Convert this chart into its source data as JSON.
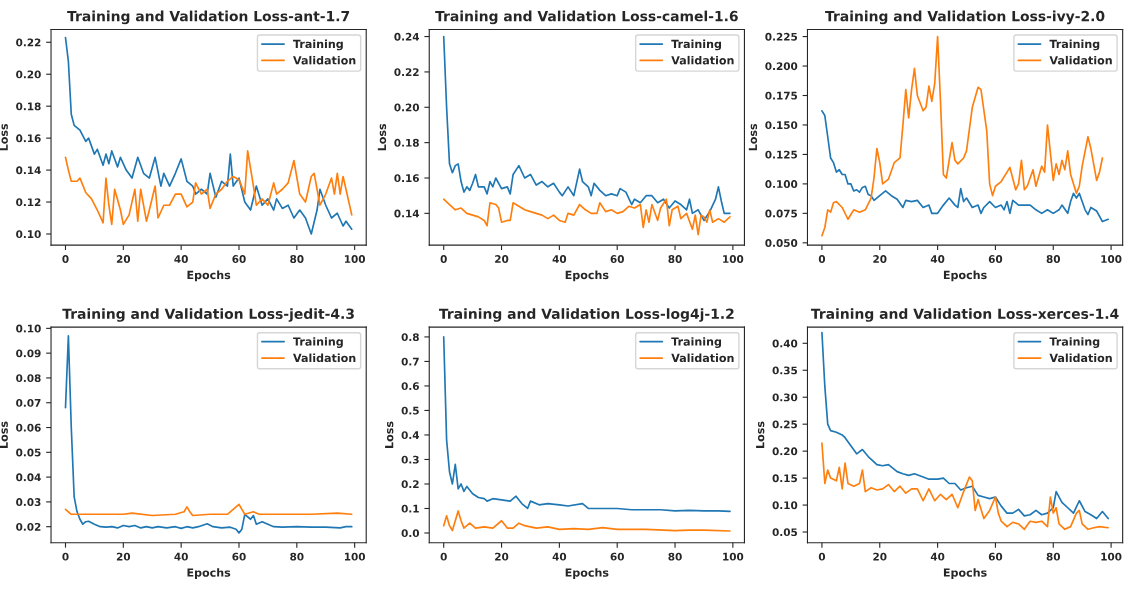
{
  "chart_data": [
    {
      "type": "line",
      "title": "Training and Validation Loss-ant-1.7",
      "xlabel": "Epochs",
      "ylabel": "Loss",
      "xlim": [
        -5,
        104
      ],
      "xticks": [
        0,
        20,
        40,
        60,
        80,
        100
      ],
      "ylim": [
        0.093,
        0.228
      ],
      "yticks": [
        {
          "value": 0.1,
          "label": "0.10"
        },
        0.12,
        0.14,
        0.16,
        0.18,
        {
          "value": 0.2,
          "label": "0.20"
        },
        0.22
      ],
      "legend": "top right",
      "grid": false,
      "series": [
        {
          "name": "Training",
          "color": "#1f77b4",
          "x": [
            0,
            1,
            2,
            3,
            5,
            7,
            8,
            10,
            11,
            13,
            14,
            15,
            16,
            18,
            19,
            21,
            23,
            25,
            27,
            29,
            31,
            33,
            34,
            36,
            38,
            40,
            42,
            44,
            45,
            47,
            49,
            50,
            52,
            54,
            56,
            57,
            58,
            60,
            62,
            64,
            66,
            68,
            70,
            72,
            73,
            75,
            77,
            79,
            81,
            83,
            85,
            87,
            88,
            90,
            92,
            94,
            96,
            97,
            99
          ],
          "values": [
            0.223,
            0.208,
            0.175,
            0.168,
            0.165,
            0.158,
            0.16,
            0.15,
            0.153,
            0.143,
            0.15,
            0.144,
            0.152,
            0.142,
            0.148,
            0.14,
            0.135,
            0.148,
            0.138,
            0.135,
            0.148,
            0.13,
            0.138,
            0.13,
            0.138,
            0.147,
            0.133,
            0.13,
            0.125,
            0.128,
            0.125,
            0.138,
            0.123,
            0.133,
            0.13,
            0.15,
            0.13,
            0.135,
            0.12,
            0.115,
            0.13,
            0.118,
            0.122,
            0.115,
            0.122,
            0.116,
            0.118,
            0.11,
            0.115,
            0.11,
            0.1,
            0.115,
            0.128,
            0.118,
            0.11,
            0.113,
            0.105,
            0.108,
            0.103
          ]
        },
        {
          "name": "Validation",
          "color": "#ff7f0e",
          "x": [
            0,
            1,
            2,
            4,
            5,
            7,
            9,
            11,
            13,
            14,
            15,
            16,
            17,
            19,
            20,
            22,
            24,
            25,
            26,
            28,
            29,
            31,
            32,
            34,
            36,
            38,
            40,
            42,
            44,
            45,
            47,
            49,
            50,
            52,
            54,
            56,
            58,
            60,
            62,
            63,
            65,
            66,
            68,
            70,
            72,
            73,
            75,
            77,
            79,
            81,
            83,
            85,
            86,
            88,
            90,
            92,
            93,
            94,
            95,
            96,
            97,
            99
          ],
          "values": [
            0.148,
            0.14,
            0.133,
            0.133,
            0.135,
            0.126,
            0.122,
            0.115,
            0.107,
            0.135,
            0.118,
            0.106,
            0.128,
            0.115,
            0.106,
            0.112,
            0.128,
            0.108,
            0.128,
            0.108,
            0.115,
            0.13,
            0.11,
            0.118,
            0.118,
            0.125,
            0.125,
            0.117,
            0.12,
            0.132,
            0.125,
            0.128,
            0.116,
            0.125,
            0.128,
            0.133,
            0.136,
            0.134,
            0.125,
            0.152,
            0.13,
            0.118,
            0.122,
            0.118,
            0.132,
            0.125,
            0.128,
            0.132,
            0.146,
            0.125,
            0.12,
            0.136,
            0.138,
            0.118,
            0.125,
            0.135,
            0.125,
            0.138,
            0.125,
            0.136,
            0.128,
            0.112
          ]
        }
      ]
    },
    {
      "type": "line",
      "title": "Training and Validation Loss-camel-1.6",
      "xlabel": "Epochs",
      "ylabel": "Loss",
      "xlim": [
        -5,
        104
      ],
      "xticks": [
        0,
        20,
        40,
        60,
        80,
        100
      ],
      "ylim": [
        0.122,
        0.244
      ],
      "yticks": [
        0.14,
        0.16,
        0.18,
        {
          "value": 0.2,
          "label": "0.20"
        },
        0.22,
        0.24
      ],
      "legend": "top right",
      "grid": false,
      "series": [
        {
          "name": "Training",
          "color": "#1f77b4",
          "x": [
            0,
            1,
            2,
            3,
            4,
            5,
            6,
            7,
            8,
            9,
            10,
            11,
            12,
            14,
            15,
            16,
            17,
            18,
            20,
            22,
            23,
            24,
            26,
            28,
            30,
            32,
            34,
            36,
            38,
            40,
            41,
            43,
            45,
            47,
            48,
            50,
            51,
            52,
            54,
            56,
            58,
            60,
            61,
            63,
            65,
            66,
            68,
            70,
            72,
            74,
            76,
            78,
            80,
            82,
            84,
            85,
            86,
            88,
            90,
            92,
            94,
            95,
            96,
            97,
            99
          ],
          "values": [
            0.24,
            0.2,
            0.168,
            0.163,
            0.167,
            0.168,
            0.158,
            0.152,
            0.155,
            0.153,
            0.157,
            0.162,
            0.155,
            0.155,
            0.151,
            0.158,
            0.155,
            0.16,
            0.154,
            0.155,
            0.151,
            0.162,
            0.167,
            0.16,
            0.162,
            0.156,
            0.158,
            0.155,
            0.157,
            0.152,
            0.15,
            0.155,
            0.15,
            0.165,
            0.158,
            0.155,
            0.15,
            0.157,
            0.153,
            0.15,
            0.151,
            0.15,
            0.154,
            0.152,
            0.145,
            0.148,
            0.146,
            0.15,
            0.15,
            0.146,
            0.148,
            0.143,
            0.147,
            0.145,
            0.142,
            0.148,
            0.14,
            0.142,
            0.136,
            0.141,
            0.148,
            0.155,
            0.147,
            0.14,
            0.14
          ]
        },
        {
          "name": "Validation",
          "color": "#ff7f0e",
          "x": [
            0,
            2,
            4,
            6,
            8,
            10,
            12,
            14,
            15,
            16,
            18,
            19,
            20,
            22,
            23,
            24,
            26,
            28,
            30,
            32,
            34,
            36,
            38,
            40,
            42,
            43,
            45,
            47,
            49,
            51,
            53,
            54,
            56,
            58,
            60,
            62,
            64,
            66,
            68,
            69,
            70,
            71,
            72,
            74,
            75,
            77,
            78,
            79,
            81,
            82,
            84,
            86,
            87,
            88,
            89,
            90,
            91,
            92,
            93,
            95,
            97,
            99
          ],
          "values": [
            0.148,
            0.145,
            0.142,
            0.143,
            0.14,
            0.139,
            0.138,
            0.136,
            0.133,
            0.146,
            0.145,
            0.143,
            0.135,
            0.136,
            0.136,
            0.146,
            0.144,
            0.142,
            0.141,
            0.14,
            0.139,
            0.137,
            0.139,
            0.136,
            0.135,
            0.14,
            0.139,
            0.145,
            0.142,
            0.14,
            0.14,
            0.146,
            0.141,
            0.142,
            0.14,
            0.141,
            0.144,
            0.143,
            0.145,
            0.132,
            0.142,
            0.135,
            0.145,
            0.136,
            0.143,
            0.148,
            0.133,
            0.142,
            0.144,
            0.137,
            0.14,
            0.131,
            0.139,
            0.128,
            0.139,
            0.138,
            0.135,
            0.142,
            0.135,
            0.137,
            0.135,
            0.138
          ]
        }
      ]
    },
    {
      "type": "line",
      "title": "Training and Validation Loss-ivy-2.0",
      "xlabel": "Epochs",
      "ylabel": "Loss",
      "xlim": [
        -5,
        104
      ],
      "xticks": [
        0,
        20,
        40,
        60,
        80,
        100
      ],
      "ylim": [
        0.048,
        0.231
      ],
      "yticks": [
        {
          "value": 0.05,
          "label": "0.050"
        },
        {
          "value": 0.075,
          "label": "0.075"
        },
        {
          "value": 0.1,
          "label": "0.100"
        },
        {
          "value": 0.125,
          "label": "0.125"
        },
        {
          "value": 0.15,
          "label": "0.150"
        },
        {
          "value": 0.175,
          "label": "0.175"
        },
        {
          "value": 0.2,
          "label": "0.200"
        },
        {
          "value": 0.225,
          "label": "0.225"
        }
      ],
      "legend": "top right",
      "grid": false,
      "series": [
        {
          "name": "Training",
          "color": "#1f77b4",
          "x": [
            0,
            1,
            2,
            3,
            4,
            5,
            6,
            7,
            8,
            9,
            10,
            11,
            12,
            13,
            14,
            15,
            16,
            17,
            18,
            20,
            22,
            24,
            26,
            28,
            29,
            31,
            33,
            35,
            37,
            38,
            40,
            42,
            44,
            46,
            47,
            48,
            49,
            50,
            52,
            54,
            55,
            56,
            58,
            60,
            62,
            63,
            64,
            65,
            66,
            68,
            70,
            72,
            74,
            76,
            78,
            80,
            82,
            83,
            85,
            86,
            87,
            88,
            89,
            91,
            92,
            93,
            95,
            97,
            99
          ],
          "values": [
            0.162,
            0.158,
            0.14,
            0.122,
            0.118,
            0.11,
            0.112,
            0.108,
            0.108,
            0.1,
            0.1,
            0.094,
            0.095,
            0.093,
            0.097,
            0.098,
            0.091,
            0.09,
            0.086,
            0.09,
            0.094,
            0.09,
            0.087,
            0.08,
            0.086,
            0.085,
            0.086,
            0.08,
            0.082,
            0.075,
            0.075,
            0.082,
            0.088,
            0.082,
            0.08,
            0.096,
            0.085,
            0.088,
            0.08,
            0.082,
            0.075,
            0.08,
            0.085,
            0.08,
            0.082,
            0.078,
            0.085,
            0.075,
            0.086,
            0.082,
            0.082,
            0.082,
            0.078,
            0.075,
            0.078,
            0.075,
            0.078,
            0.082,
            0.075,
            0.085,
            0.092,
            0.088,
            0.092,
            0.078,
            0.074,
            0.08,
            0.077,
            0.068,
            0.07
          ]
        },
        {
          "name": "Validation",
          "color": "#ff7f0e",
          "x": [
            0,
            1,
            2,
            3,
            4,
            5,
            7,
            9,
            10,
            11,
            13,
            15,
            17,
            18,
            19,
            20,
            21,
            23,
            25,
            27,
            28,
            29,
            30,
            31,
            32,
            33,
            35,
            36,
            37,
            38,
            39,
            40,
            41,
            42,
            43,
            45,
            46,
            47,
            49,
            50,
            52,
            54,
            55,
            57,
            58,
            59,
            60,
            62,
            64,
            65,
            67,
            68,
            69,
            70,
            71,
            73,
            74,
            76,
            77,
            78,
            80,
            81,
            82,
            83,
            84,
            85,
            86,
            88,
            89,
            90,
            92,
            93,
            95,
            96,
            97
          ],
          "values": [
            0.056,
            0.063,
            0.078,
            0.076,
            0.084,
            0.085,
            0.08,
            0.07,
            0.074,
            0.078,
            0.076,
            0.078,
            0.088,
            0.105,
            0.13,
            0.118,
            0.1,
            0.104,
            0.118,
            0.122,
            0.15,
            0.18,
            0.156,
            0.18,
            0.198,
            0.175,
            0.162,
            0.165,
            0.183,
            0.17,
            0.185,
            0.225,
            0.17,
            0.108,
            0.105,
            0.135,
            0.12,
            0.117,
            0.122,
            0.128,
            0.165,
            0.182,
            0.18,
            0.145,
            0.1,
            0.09,
            0.098,
            0.102,
            0.11,
            0.114,
            0.095,
            0.1,
            0.12,
            0.095,
            0.098,
            0.112,
            0.098,
            0.115,
            0.11,
            0.15,
            0.103,
            0.117,
            0.108,
            0.12,
            0.112,
            0.128,
            0.108,
            0.092,
            0.098,
            0.115,
            0.14,
            0.13,
            0.103,
            0.11,
            0.122
          ]
        }
      ]
    },
    {
      "type": "line",
      "title": "Training and Validation Loss-jedit-4.3",
      "xlabel": "Epochs",
      "ylabel": "Loss",
      "xlim": [
        -5,
        104
      ],
      "xticks": [
        0,
        20,
        40,
        60,
        80,
        100
      ],
      "ylim": [
        0.0135,
        0.1005
      ],
      "yticks": [
        0.02,
        0.03,
        0.04,
        0.05,
        0.06,
        0.07,
        0.08,
        0.09,
        {
          "value": 0.1,
          "label": "0.10"
        }
      ],
      "legend": "top right",
      "grid": false,
      "series": [
        {
          "name": "Training",
          "color": "#1f77b4",
          "x": [
            0,
            1,
            2,
            3,
            4,
            5,
            6,
            7,
            8,
            10,
            12,
            14,
            16,
            18,
            20,
            22,
            24,
            26,
            28,
            30,
            32,
            35,
            38,
            40,
            42,
            44,
            46,
            49,
            51,
            54,
            57,
            59,
            60,
            61,
            62,
            64,
            65,
            66,
            68,
            70,
            72,
            75,
            80,
            85,
            90,
            95,
            97,
            99
          ],
          "values": [
            0.068,
            0.097,
            0.06,
            0.032,
            0.026,
            0.023,
            0.021,
            0.022,
            0.0222,
            0.021,
            0.02,
            0.0198,
            0.02,
            0.0195,
            0.0205,
            0.02,
            0.0205,
            0.0195,
            0.02,
            0.0195,
            0.02,
            0.0195,
            0.02,
            0.0193,
            0.02,
            0.0195,
            0.02,
            0.0212,
            0.02,
            0.0195,
            0.0198,
            0.019,
            0.0175,
            0.019,
            0.025,
            0.023,
            0.0245,
            0.021,
            0.022,
            0.021,
            0.02,
            0.0198,
            0.02,
            0.0198,
            0.0198,
            0.0195,
            0.02,
            0.02
          ]
        },
        {
          "name": "Validation",
          "color": "#ff7f0e",
          "x": [
            0,
            2,
            4,
            10,
            20,
            23,
            30,
            38,
            41,
            42,
            43,
            44,
            50,
            56,
            58,
            60,
            61,
            62,
            65,
            67,
            75,
            85,
            94,
            99
          ],
          "values": [
            0.027,
            0.025,
            0.025,
            0.025,
            0.025,
            0.0255,
            0.0245,
            0.025,
            0.026,
            0.028,
            0.026,
            0.0245,
            0.025,
            0.025,
            0.027,
            0.029,
            0.027,
            0.025,
            0.026,
            0.025,
            0.025,
            0.025,
            0.0255,
            0.025
          ]
        }
      ]
    },
    {
      "type": "line",
      "title": "Training and Validation Loss-log4j-1.2",
      "xlabel": "Epochs",
      "ylabel": "Loss",
      "xlim": [
        -5,
        104
      ],
      "xticks": [
        0,
        20,
        40,
        60,
        80,
        100
      ],
      "ylim": [
        -0.04,
        0.84
      ],
      "yticks": [
        {
          "value": 0,
          "label": "0.0"
        },
        0.1,
        0.2,
        0.3,
        0.4,
        0.5,
        0.6,
        0.7,
        0.8
      ],
      "legend": "top right",
      "grid": false,
      "series": [
        {
          "name": "Training",
          "color": "#1f77b4",
          "x": [
            0,
            1,
            2,
            3,
            4,
            5,
            6,
            7,
            8,
            10,
            12,
            14,
            15,
            17,
            20,
            23,
            25,
            27,
            29,
            30,
            33,
            36,
            40,
            43,
            48,
            50,
            55,
            60,
            65,
            70,
            75,
            80,
            85,
            90,
            95,
            99
          ],
          "values": [
            0.8,
            0.38,
            0.25,
            0.2,
            0.28,
            0.18,
            0.2,
            0.17,
            0.19,
            0.16,
            0.145,
            0.14,
            0.13,
            0.14,
            0.135,
            0.13,
            0.15,
            0.12,
            0.1,
            0.13,
            0.115,
            0.12,
            0.115,
            0.11,
            0.12,
            0.1,
            0.1,
            0.1,
            0.095,
            0.095,
            0.095,
            0.09,
            0.092,
            0.09,
            0.09,
            0.088
          ]
        },
        {
          "name": "Validation",
          "color": "#ff7f0e",
          "x": [
            0,
            1,
            2,
            3,
            5,
            6,
            7,
            9,
            11,
            14,
            17,
            20,
            22,
            24,
            26,
            28,
            32,
            36,
            40,
            45,
            50,
            55,
            60,
            70,
            80,
            85,
            90,
            99
          ],
          "values": [
            0.03,
            0.07,
            0.03,
            0.01,
            0.09,
            0.05,
            0.02,
            0.04,
            0.02,
            0.025,
            0.02,
            0.05,
            0.02,
            0.02,
            0.04,
            0.03,
            0.02,
            0.025,
            0.015,
            0.018,
            0.015,
            0.022,
            0.015,
            0.015,
            0.01,
            0.012,
            0.012,
            0.008
          ]
        }
      ]
    },
    {
      "type": "line",
      "title": "Training and Validation Loss-xerces-1.4",
      "xlabel": "Epochs",
      "ylabel": "Loss",
      "xlim": [
        -5,
        104
      ],
      "xticks": [
        0,
        20,
        40,
        60,
        80,
        100
      ],
      "ylim": [
        0.03,
        0.43
      ],
      "yticks": [
        0.05,
        {
          "value": 0.1,
          "label": "0.10"
        },
        0.15,
        {
          "value": 0.2,
          "label": "0.20"
        },
        0.25,
        {
          "value": 0.3,
          "label": "0.30"
        },
        0.35,
        {
          "value": 0.4,
          "label": "0.40"
        }
      ],
      "legend": "top right",
      "grid": false,
      "series": [
        {
          "name": "Training",
          "color": "#1f77b4",
          "x": [
            0,
            1,
            2,
            3,
            5,
            7,
            8,
            10,
            12,
            14,
            16,
            19,
            21,
            23,
            26,
            28,
            30,
            32,
            35,
            37,
            40,
            42,
            44,
            46,
            48,
            50,
            52,
            54,
            56,
            58,
            60,
            62,
            64,
            66,
            68,
            70,
            72,
            74,
            76,
            78,
            80,
            81,
            83,
            85,
            87,
            89,
            91,
            93,
            95,
            97,
            99
          ],
          "values": [
            0.42,
            0.32,
            0.25,
            0.238,
            0.235,
            0.23,
            0.225,
            0.21,
            0.195,
            0.203,
            0.19,
            0.175,
            0.173,
            0.175,
            0.162,
            0.158,
            0.155,
            0.158,
            0.152,
            0.148,
            0.148,
            0.15,
            0.14,
            0.14,
            0.128,
            0.132,
            0.135,
            0.118,
            0.115,
            0.112,
            0.115,
            0.098,
            0.085,
            0.085,
            0.092,
            0.08,
            0.082,
            0.09,
            0.082,
            0.085,
            0.095,
            0.125,
            0.105,
            0.095,
            0.085,
            0.108,
            0.088,
            0.082,
            0.075,
            0.088,
            0.075
          ]
        },
        {
          "name": "Validation",
          "color": "#ff7f0e",
          "x": [
            0,
            1,
            2,
            3,
            5,
            6,
            7,
            8,
            9,
            11,
            13,
            14,
            15,
            17,
            19,
            21,
            23,
            25,
            27,
            29,
            31,
            33,
            35,
            37,
            39,
            41,
            43,
            45,
            47,
            49,
            51,
            52,
            53,
            54,
            56,
            58,
            60,
            61,
            62,
            64,
            66,
            68,
            70,
            72,
            74,
            76,
            78,
            79,
            80,
            81,
            82,
            84,
            86,
            88,
            89,
            90,
            92,
            94,
            96,
            99
          ],
          "values": [
            0.215,
            0.14,
            0.165,
            0.15,
            0.145,
            0.17,
            0.13,
            0.178,
            0.14,
            0.135,
            0.14,
            0.165,
            0.125,
            0.132,
            0.128,
            0.13,
            0.138,
            0.125,
            0.135,
            0.122,
            0.13,
            0.13,
            0.108,
            0.13,
            0.108,
            0.12,
            0.11,
            0.12,
            0.095,
            0.125,
            0.152,
            0.145,
            0.09,
            0.11,
            0.075,
            0.09,
            0.115,
            0.085,
            0.07,
            0.06,
            0.068,
            0.065,
            0.055,
            0.07,
            0.068,
            0.07,
            0.06,
            0.115,
            0.085,
            0.095,
            0.065,
            0.055,
            0.06,
            0.085,
            0.09,
            0.065,
            0.055,
            0.058,
            0.06,
            0.058
          ]
        }
      ]
    }
  ]
}
